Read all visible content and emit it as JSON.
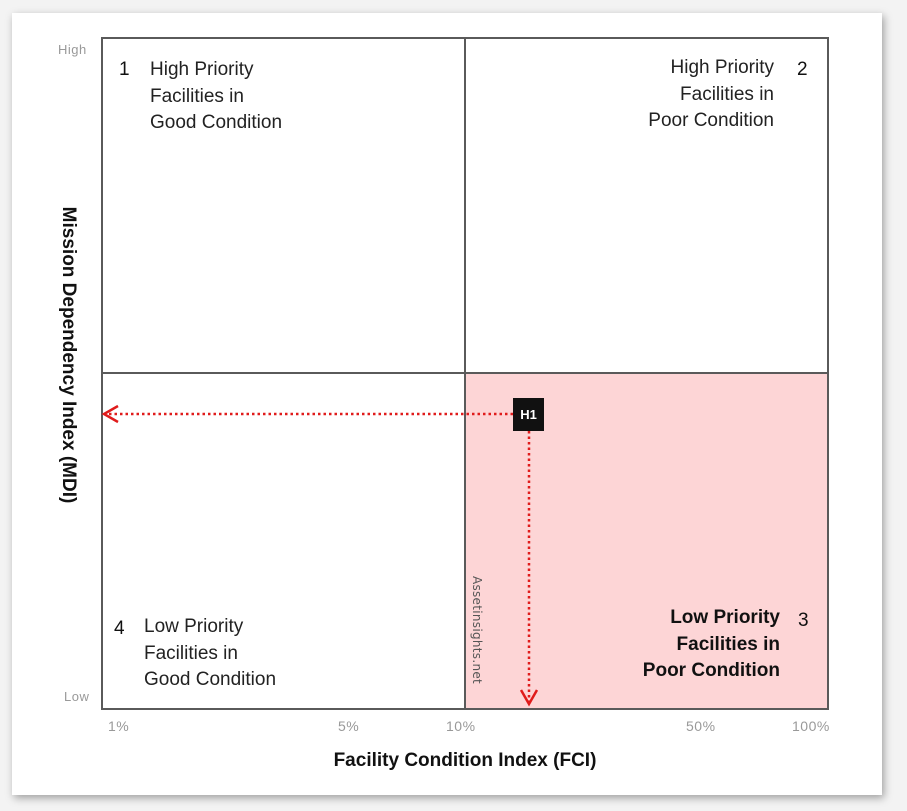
{
  "y_axis": {
    "title": "Mission Dependency Index (MDI)",
    "high_label": "High",
    "low_label": "Low"
  },
  "x_axis": {
    "title": "Facility Condition Index (FCI)",
    "ticks": [
      "1%",
      "5%",
      "10%",
      "50%",
      "100%"
    ]
  },
  "quadrants": [
    {
      "number": "1",
      "text": "High Priority\nFacilities in\nGood Condition"
    },
    {
      "number": "2",
      "text": "High Priority\nFacilities in\nPoor Condition"
    },
    {
      "number": "3",
      "text": "Low Priority\nFacilities in\nPoor Condition"
    },
    {
      "number": "4",
      "text": "Low Priority\nFacilities in\nGood Condition"
    }
  ],
  "marker": {
    "label": "H1"
  },
  "watermark": "Assetinsights.net",
  "colors": {
    "highlight_quadrant": "#fdd5d6",
    "arrow": "#e01b1b",
    "border": "#5a5a5a"
  }
}
